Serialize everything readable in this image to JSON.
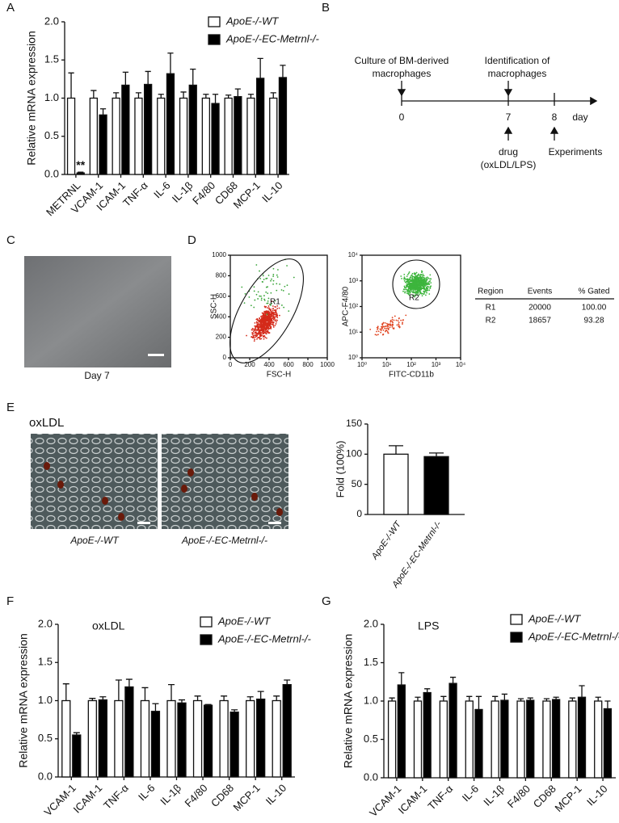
{
  "panel_labels": [
    "A",
    "B",
    "C",
    "D",
    "E",
    "F",
    "G"
  ],
  "timeline": {
    "days": [
      0,
      7,
      8
    ],
    "unit": "day",
    "above": [
      [
        "Culture of BM-derived",
        "macrophages"
      ],
      [
        "Identification of",
        "macrophages"
      ]
    ],
    "below": [
      [
        "drug",
        "(oxLDL/LPS)"
      ],
      [
        "Experiments"
      ]
    ]
  },
  "micrographs": {
    "culture_caption": "Day 7",
    "oxldl_title": "oxLDL",
    "captions": [
      "ApoE-/-WT",
      "ApoE-/-EC-Metrnl-/-"
    ]
  },
  "gate_table": {
    "header": [
      "Region",
      "Events",
      "% Gated"
    ],
    "rows": [
      [
        "R1",
        "20000",
        "100.00"
      ],
      [
        "R2",
        "18657",
        "93.28"
      ]
    ]
  },
  "chart_data": [
    {
      "type": "grouped_bar",
      "ylabel": "Relative mRNA expression",
      "categories": [
        "METRNL",
        "VCAM-1",
        "ICAM-1",
        "TNF-α",
        "IL-6",
        "IL-1β",
        "F4/80",
        "CD68",
        "MCP-1",
        "IL-10"
      ],
      "series": [
        {
          "name": "ApoE-/-WT",
          "color": "#ffffff",
          "values": [
            1,
            1,
            1,
            1,
            1,
            1,
            1,
            1,
            1,
            1
          ],
          "errors": [
            0.33,
            0.1,
            0.07,
            0.07,
            0.05,
            0.08,
            0.05,
            0.04,
            0.05,
            0.07
          ]
        },
        {
          "name": "ApoE-/-EC-Metrnl-/-",
          "color": "#000000",
          "values": [
            0.02,
            0.78,
            1.17,
            1.18,
            1.32,
            1.17,
            0.93,
            1.02,
            1.26,
            1.27
          ],
          "errors": [
            0.01,
            0.08,
            0.17,
            0.17,
            0.27,
            0.21,
            0.12,
            0.1,
            0.26,
            0.16
          ]
        }
      ],
      "annotation": "**",
      "ylim": [
        0,
        2
      ],
      "yticks": [
        {
          "value": 0,
          "label": "0.0"
        },
        0.5,
        {
          "value": 1,
          "label": "1.0"
        },
        1.5,
        {
          "value": 2,
          "label": "2.0"
        }
      ]
    },
    {
      "type": "scatter",
      "xlabel": "FSC-H",
      "ylabel": "SSC-H",
      "gate": "R1",
      "xlim": [
        0,
        1000
      ],
      "xticks": [
        0,
        200,
        400,
        600,
        800,
        1000
      ],
      "ylim": [
        0,
        1000
      ],
      "yticks": [
        0,
        200,
        400,
        600,
        800,
        1000
      ],
      "log": false
    },
    {
      "type": "scatter",
      "xlabel": "FITC-CD11b",
      "ylabel": "APC-F4/80",
      "gate": "R2",
      "xlim": [
        1,
        10000
      ],
      "xticks": [
        {
          "value": 1,
          "label": "10⁰"
        },
        {
          "value": 10,
          "label": "10¹"
        },
        {
          "value": 100,
          "label": "10²"
        },
        {
          "value": 1000,
          "label": "10³"
        },
        {
          "value": 10000,
          "label": "10⁴"
        }
      ],
      "ylim": [
        1,
        10000
      ],
      "yticks": [
        {
          "value": 1,
          "label": "10⁰"
        },
        {
          "value": 10,
          "label": "10¹"
        },
        {
          "value": 100,
          "label": "10²"
        },
        {
          "value": 1000,
          "label": "10³"
        },
        {
          "value": 10000,
          "label": "10⁴"
        }
      ],
      "log": true
    },
    {
      "type": "bar",
      "ylabel": "Fold (100%)",
      "categories": [
        "ApoE-/-WT",
        "ApoE-/-EC-Metrnl-/-"
      ],
      "values": [
        100,
        96
      ],
      "errors": [
        14,
        6
      ],
      "colors": [
        "#ffffff",
        "#000000"
      ],
      "ylim": [
        0,
        150
      ],
      "yticks": [
        0,
        50,
        100,
        150
      ]
    },
    {
      "type": "grouped_bar",
      "title": "oxLDL",
      "ylabel": "Relative mRNA expression",
      "categories": [
        "VCAM-1",
        "ICAM-1",
        "TNF-α",
        "IL-6",
        "IL-1β",
        "F4/80",
        "CD68",
        "MCP-1",
        "IL-10"
      ],
      "series": [
        {
          "name": "ApoE-/-WT",
          "color": "#ffffff",
          "values": [
            1,
            1,
            1,
            1,
            1,
            1,
            1,
            1,
            1
          ],
          "errors": [
            0.22,
            0.03,
            0.27,
            0.17,
            0.21,
            0.06,
            0.06,
            0.05,
            0.06
          ]
        },
        {
          "name": "ApoE-/-EC-Metrnl-/-",
          "color": "#000000",
          "values": [
            0.55,
            1.01,
            1.18,
            0.86,
            0.97,
            0.94,
            0.85,
            1.02,
            1.21
          ],
          "errors": [
            0.03,
            0.04,
            0.1,
            0.1,
            0.04,
            0.01,
            0.03,
            0.1,
            0.06
          ]
        }
      ],
      "ylim": [
        0,
        2
      ],
      "yticks": [
        {
          "value": 0,
          "label": "0.0"
        },
        0.5,
        {
          "value": 1,
          "label": "1.0"
        },
        1.5,
        {
          "value": 2,
          "label": "2.0"
        }
      ]
    },
    {
      "type": "grouped_bar",
      "title": "LPS",
      "ylabel": "Relative mRNA expression",
      "categories": [
        "VCAM-1",
        "ICAM-1",
        "TNF-α",
        "IL-6",
        "IL-1β",
        "F4/80",
        "CD68",
        "MCP-1",
        "IL-10"
      ],
      "series": [
        {
          "name": "ApoE-/-WT",
          "color": "#ffffff",
          "values": [
            1,
            1,
            1,
            1,
            1,
            1,
            1,
            1,
            1
          ],
          "errors": [
            0.04,
            0.05,
            0.06,
            0.06,
            0.06,
            0.03,
            0.03,
            0.04,
            0.05
          ]
        },
        {
          "name": "ApoE-/-EC-Metrnl-/-",
          "color": "#000000",
          "values": [
            1.21,
            1.11,
            1.23,
            0.89,
            1.01,
            1.01,
            1.02,
            1.05,
            0.9
          ],
          "errors": [
            0.16,
            0.05,
            0.08,
            0.17,
            0.08,
            0.03,
            0.03,
            0.15,
            0.1
          ]
        }
      ],
      "ylim": [
        0,
        2
      ],
      "yticks": [
        {
          "value": 0,
          "label": "0.0"
        },
        0.5,
        {
          "value": 1,
          "label": "1.0"
        },
        1.5,
        {
          "value": 2,
          "label": "2.0"
        }
      ]
    }
  ]
}
